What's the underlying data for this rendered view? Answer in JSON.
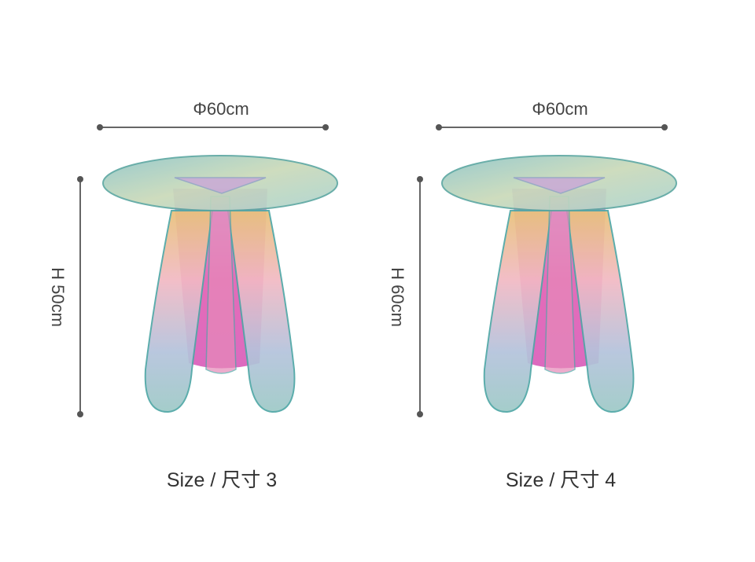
{
  "products": [
    {
      "width_label": "Φ60cm",
      "height_label": "H 50cm",
      "caption": "Size / 尺寸 3"
    },
    {
      "width_label": "Φ60cm",
      "height_label": "H 60cm",
      "caption": "Size / 尺寸 4"
    }
  ]
}
